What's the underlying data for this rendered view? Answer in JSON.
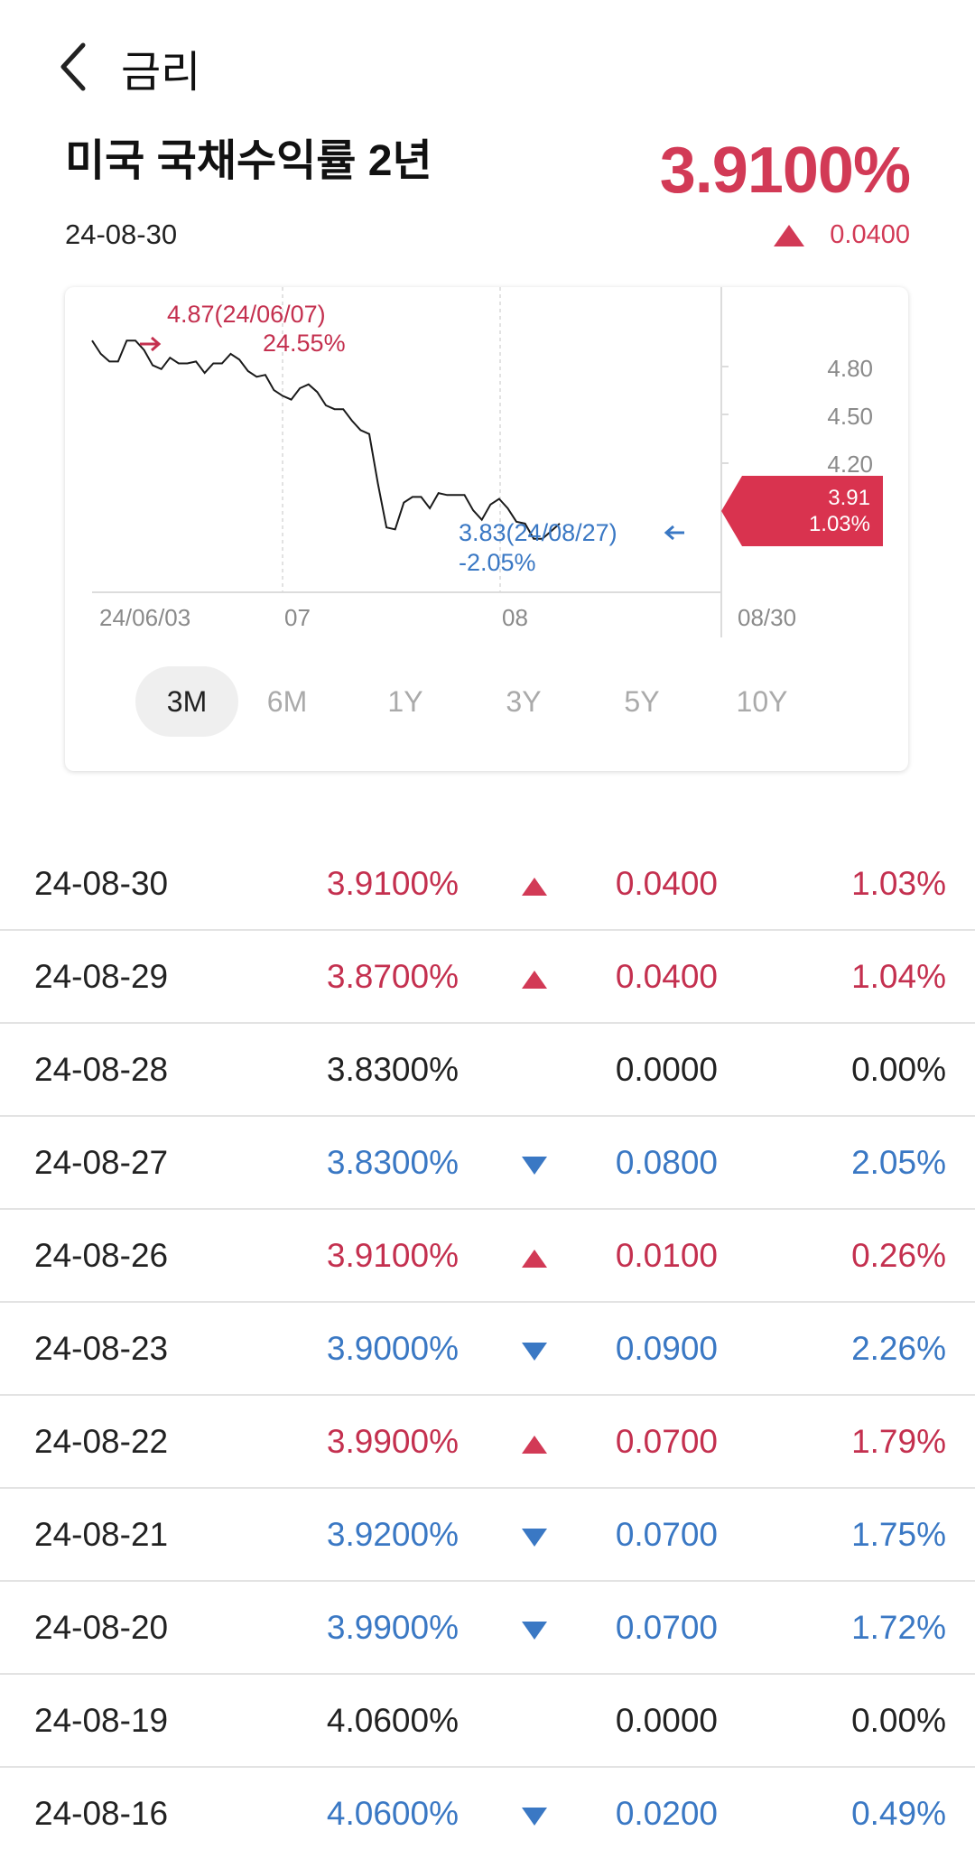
{
  "header": {
    "title": "금리",
    "back_icon": "chevron-left-icon"
  },
  "instrument": {
    "name": "미국 국채수익률 2년",
    "date": "24-08-30",
    "value": "3.9100%",
    "change": "0.0400",
    "direction": "up"
  },
  "colors": {
    "up": "#d23a56",
    "down": "#3a78c4",
    "neutral": "#222222"
  },
  "chart": {
    "high_label": "4.87(24/06/07)",
    "high_pct": "24.55%",
    "low_label": "3.83(24/08/27)",
    "low_pct": "-2.05%",
    "current_value": "3.91",
    "current_pct": "1.03%",
    "y_ticks": [
      "4.80",
      "4.50",
      "4.20"
    ],
    "x_ticks": [
      "24/06/03",
      "07",
      "08",
      "08/30"
    ]
  },
  "chart_data": {
    "type": "line",
    "series": [
      {
        "values": [
          4.87,
          4.8,
          4.76,
          4.76,
          4.87,
          4.87,
          4.82,
          4.74,
          4.72,
          4.78,
          4.75,
          4.75,
          4.76,
          4.7,
          4.75,
          4.75,
          4.8,
          4.77,
          4.71,
          4.68,
          4.69,
          4.61,
          4.58,
          4.56,
          4.62,
          4.64,
          4.6,
          4.53,
          4.51,
          4.51,
          4.45,
          4.4,
          4.38,
          4.12,
          3.89,
          3.88,
          4.02,
          4.05,
          4.05,
          3.99,
          4.07,
          4.06,
          4.06,
          4.06,
          3.98,
          3.93,
          4.01,
          4.04,
          3.99,
          3.92,
          3.91,
          3.83,
          3.83,
          3.87,
          3.91
        ]
      }
    ],
    "y_ticks": [
      4.8,
      4.5,
      4.2
    ],
    "ylim": [
      3.55,
      5.15
    ],
    "x_tick_labels": [
      "24/06/03",
      "07",
      "08",
      "08/30"
    ],
    "high": {
      "value": 4.87,
      "date": "24/06/07",
      "pct": "24.55%"
    },
    "low": {
      "value": 3.83,
      "date": "24/08/27",
      "pct": "-2.05%"
    },
    "current": {
      "value": 3.91,
      "pct": "1.03%"
    }
  },
  "periods": [
    "3M",
    "6M",
    "1Y",
    "3Y",
    "5Y",
    "10Y"
  ],
  "selected_period": "3M",
  "rows": [
    {
      "date": "24-08-30",
      "rate": "3.9100%",
      "dir": "up",
      "diff": "0.0400",
      "pct": "1.03%"
    },
    {
      "date": "24-08-29",
      "rate": "3.8700%",
      "dir": "up",
      "diff": "0.0400",
      "pct": "1.04%"
    },
    {
      "date": "24-08-28",
      "rate": "3.8300%",
      "dir": "flat",
      "diff": "0.0000",
      "pct": "0.00%"
    },
    {
      "date": "24-08-27",
      "rate": "3.8300%",
      "dir": "down",
      "diff": "0.0800",
      "pct": "2.05%"
    },
    {
      "date": "24-08-26",
      "rate": "3.9100%",
      "dir": "up",
      "diff": "0.0100",
      "pct": "0.26%"
    },
    {
      "date": "24-08-23",
      "rate": "3.9000%",
      "dir": "down",
      "diff": "0.0900",
      "pct": "2.26%"
    },
    {
      "date": "24-08-22",
      "rate": "3.9900%",
      "dir": "up",
      "diff": "0.0700",
      "pct": "1.79%"
    },
    {
      "date": "24-08-21",
      "rate": "3.9200%",
      "dir": "down",
      "diff": "0.0700",
      "pct": "1.75%"
    },
    {
      "date": "24-08-20",
      "rate": "3.9900%",
      "dir": "down",
      "diff": "0.0700",
      "pct": "1.72%"
    },
    {
      "date": "24-08-19",
      "rate": "4.0600%",
      "dir": "flat",
      "diff": "0.0000",
      "pct": "0.00%"
    },
    {
      "date": "24-08-16",
      "rate": "4.0600%",
      "dir": "down",
      "diff": "0.0200",
      "pct": "0.49%"
    }
  ]
}
